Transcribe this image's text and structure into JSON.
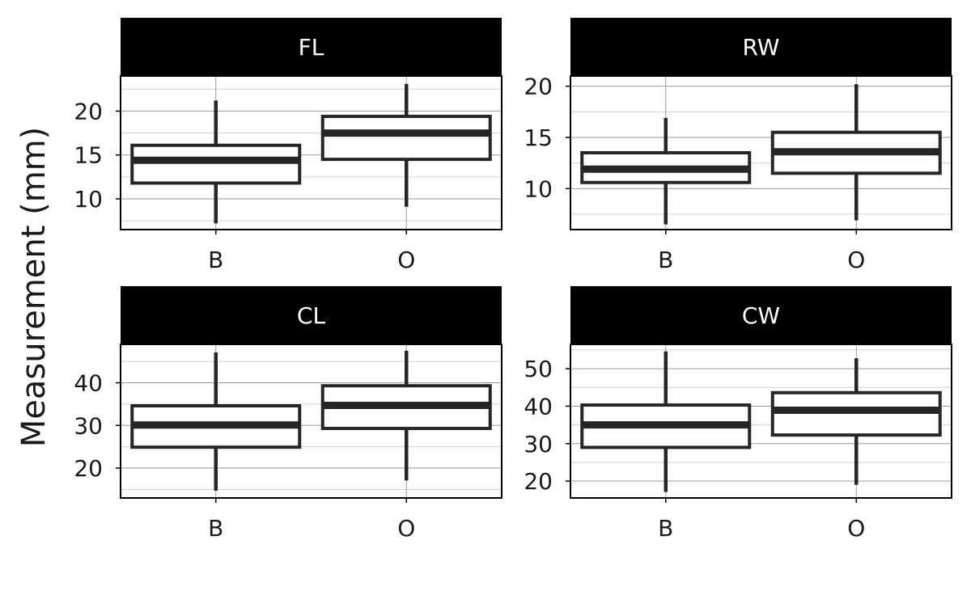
{
  "y_axis_label": "Measurement (mm)",
  "colors": {
    "strip_background": "#000000",
    "strip_text": "#ffffff",
    "box_stroke": "#262626",
    "box_fill": "#ffffff",
    "grid_major": "#9a9a9a",
    "grid_minor": "#d0d0d0",
    "panel_border": "#000000"
  },
  "chart_data": [
    {
      "type": "box",
      "panel": "FL",
      "categories": [
        "B",
        "O"
      ],
      "ylim": [
        6.5,
        24
      ],
      "yticks": [
        10,
        15,
        20
      ],
      "grid": true,
      "boxes": [
        {
          "category": "B",
          "min": 7.2,
          "q1": 11.8,
          "median": 14.4,
          "q3": 16.1,
          "max": 21.2
        },
        {
          "category": "O",
          "min": 9.1,
          "q1": 14.5,
          "median": 17.5,
          "q3": 19.4,
          "max": 23.1
        }
      ]
    },
    {
      "type": "box",
      "panel": "RW",
      "categories": [
        "B",
        "O"
      ],
      "ylim": [
        6,
        21
      ],
      "yticks": [
        10,
        15,
        20
      ],
      "grid": true,
      "boxes": [
        {
          "category": "B",
          "min": 6.5,
          "q1": 10.6,
          "median": 11.9,
          "q3": 13.5,
          "max": 16.9
        },
        {
          "category": "O",
          "min": 6.9,
          "q1": 11.5,
          "median": 13.6,
          "q3": 15.5,
          "max": 20.2
        }
      ]
    },
    {
      "type": "box",
      "panel": "CL",
      "categories": [
        "B",
        "O"
      ],
      "ylim": [
        13,
        49
      ],
      "yticks": [
        20,
        30,
        40
      ],
      "grid": true,
      "boxes": [
        {
          "category": "B",
          "min": 14.7,
          "q1": 24.9,
          "median": 30.1,
          "q3": 34.6,
          "max": 47.1
        },
        {
          "category": "O",
          "min": 17.1,
          "q1": 29.3,
          "median": 34.7,
          "q3": 39.3,
          "max": 47.5
        }
      ]
    },
    {
      "type": "box",
      "panel": "CW",
      "categories": [
        "B",
        "O"
      ],
      "ylim": [
        15.5,
        56.5
      ],
      "yticks": [
        20,
        30,
        40,
        50
      ],
      "grid": true,
      "boxes": [
        {
          "category": "B",
          "min": 17.1,
          "q1": 29.0,
          "median": 35.0,
          "q3": 40.3,
          "max": 54.6
        },
        {
          "category": "O",
          "min": 19.0,
          "q1": 32.3,
          "median": 38.9,
          "q3": 43.6,
          "max": 52.8
        }
      ]
    }
  ]
}
